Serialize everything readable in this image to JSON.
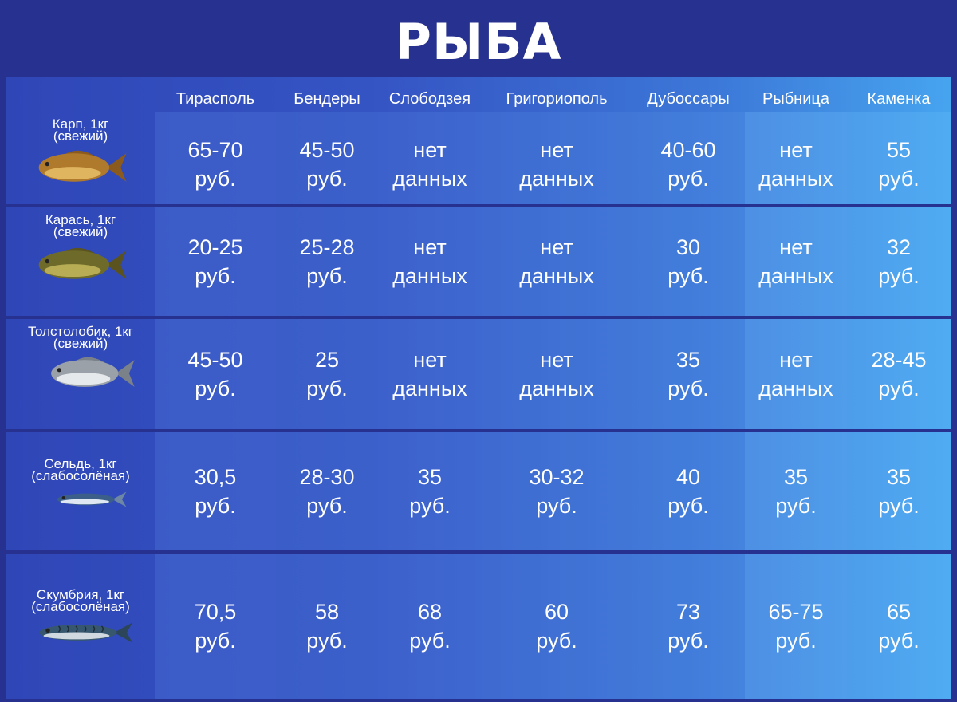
{
  "title": "РЫБА",
  "columns": [
    "Тирасполь",
    "Бендеры",
    "Слободзея",
    "Григориополь",
    "Дубоссары",
    "Рыбница",
    "Каменка"
  ],
  "rows": [
    {
      "name": "Карп, 1кг",
      "note": "(свежий)",
      "icon": "carp-icon",
      "prices": [
        [
          "65-70",
          "руб."
        ],
        [
          "45-50",
          "руб."
        ],
        [
          "нет",
          "данных"
        ],
        [
          "нет",
          "данных"
        ],
        [
          "40-60",
          "руб."
        ],
        [
          "нет",
          "данных"
        ],
        [
          "55",
          "руб."
        ]
      ]
    },
    {
      "name": "Карась, 1кг",
      "note": "(свежий)",
      "icon": "crucian-icon",
      "prices": [
        [
          "20-25",
          "руб."
        ],
        [
          "25-28",
          "руб."
        ],
        [
          "нет",
          "данных"
        ],
        [
          "нет",
          "данных"
        ],
        [
          "30",
          "руб."
        ],
        [
          "нет",
          "данных"
        ],
        [
          "32",
          "руб."
        ]
      ]
    },
    {
      "name": "Толстолобик, 1кг",
      "note": "(свежий)",
      "icon": "silver-carp-icon",
      "prices": [
        [
          "45-50",
          "руб."
        ],
        [
          "25",
          "руб."
        ],
        [
          "нет",
          "данных"
        ],
        [
          "нет",
          "данных"
        ],
        [
          "35",
          "руб."
        ],
        [
          "нет",
          "данных"
        ],
        [
          "28-45",
          "руб."
        ]
      ]
    },
    {
      "name": "Сельдь, 1кг",
      "note": "(слабосолёная)",
      "icon": "herring-icon",
      "prices": [
        [
          "30,5",
          "руб."
        ],
        [
          "28-30",
          "руб."
        ],
        [
          "35",
          "руб."
        ],
        [
          "30-32",
          "руб."
        ],
        [
          "40",
          "руб."
        ],
        [
          "35",
          "руб."
        ],
        [
          "35",
          "руб."
        ]
      ]
    },
    {
      "name": "Скумбрия, 1кг",
      "note": "(слабосолёная)",
      "icon": "mackerel-icon",
      "prices": [
        [
          "70,5",
          "руб."
        ],
        [
          "58",
          "руб."
        ],
        [
          "68",
          "руб."
        ],
        [
          "60",
          "руб."
        ],
        [
          "73",
          "руб."
        ],
        [
          "65-75",
          "руб."
        ],
        [
          "65",
          "руб."
        ]
      ]
    }
  ]
}
